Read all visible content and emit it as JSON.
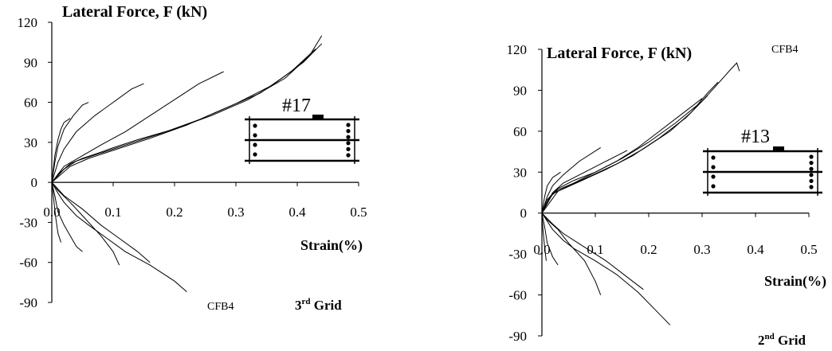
{
  "chart_data": [
    {
      "type": "line",
      "title": "Lateral Force, F (kN)",
      "xlabel": "Strain(%)",
      "ylabel": "Lateral Force, F (kN)",
      "specimen": "CFB4",
      "grid_label": {
        "ordinal": "3",
        "suffix": "rd",
        "word": " Grid"
      },
      "gauge_label": "#17",
      "xlim": [
        0,
        0.5
      ],
      "ylim": [
        -90,
        120
      ],
      "x_ticks": [
        0,
        0.1,
        0.2,
        0.3,
        0.4,
        0.5
      ],
      "x_tick_labels": [
        "0.0",
        "0.1",
        "0.2",
        "0.3",
        "0.4",
        "0.5"
      ],
      "y_ticks": [
        120,
        90,
        60,
        30,
        0,
        -30,
        -60,
        -90
      ],
      "grid": false,
      "legend": "none",
      "series": [
        {
          "x": [
            0.0,
            0.015,
            0.03,
            0.05,
            0.07,
            0.1,
            0.14,
            0.2,
            0.26,
            0.32,
            0.38,
            0.42,
            0.44
          ],
          "y": [
            0,
            8,
            14,
            18,
            21,
            26,
            32,
            40,
            50,
            62,
            78,
            95,
            110
          ]
        },
        {
          "x": [
            0.0,
            0.02,
            0.04,
            0.08,
            0.12,
            0.18,
            0.24,
            0.3,
            0.36,
            0.41,
            0.44
          ],
          "y": [
            0,
            10,
            16,
            22,
            28,
            37,
            47,
            59,
            73,
            90,
            104
          ]
        },
        {
          "x": [
            0.0,
            0.03,
            0.06,
            0.1,
            0.16,
            0.22,
            0.28,
            0.34,
            0.39,
            0.43
          ],
          "y": [
            0,
            12,
            18,
            24,
            33,
            43,
            55,
            67,
            83,
            100
          ]
        },
        {
          "x": [
            0.0,
            0.02,
            0.05,
            0.08,
            0.12,
            0.16,
            0.2,
            0.24,
            0.28
          ],
          "y": [
            0,
            12,
            20,
            28,
            38,
            50,
            62,
            74,
            83
          ]
        },
        {
          "x": [
            0.0,
            0.01,
            0.02,
            0.04,
            0.07,
            0.1,
            0.13,
            0.15
          ],
          "y": [
            0,
            15,
            25,
            38,
            50,
            60,
            70,
            74
          ]
        },
        {
          "x": [
            0.0,
            0.005,
            0.01,
            0.02,
            0.035,
            0.05,
            0.06
          ],
          "y": [
            0,
            15,
            27,
            40,
            50,
            58,
            60
          ]
        },
        {
          "x": [
            0.0,
            0.005,
            0.01,
            0.015,
            0.02,
            0.03
          ],
          "y": [
            0,
            20,
            32,
            40,
            45,
            48
          ]
        },
        {
          "x": [
            0.0,
            0.01,
            0.02,
            0.04,
            0.06,
            0.09,
            0.12,
            0.16,
            0.2,
            0.22
          ],
          "y": [
            0,
            -8,
            -15,
            -25,
            -32,
            -42,
            -52,
            -62,
            -74,
            -82
          ]
        },
        {
          "x": [
            0.0,
            0.02,
            0.05,
            0.08,
            0.11,
            0.14,
            0.16
          ],
          "y": [
            0,
            -10,
            -20,
            -32,
            -42,
            -52,
            -60
          ]
        },
        {
          "x": [
            0.0,
            0.01,
            0.03,
            0.05,
            0.08,
            0.1,
            0.11
          ],
          "y": [
            0,
            -6,
            -15,
            -25,
            -40,
            -52,
            -62
          ]
        },
        {
          "x": [
            0.0,
            0.005,
            0.01,
            0.02,
            0.03,
            0.04,
            0.05
          ],
          "y": [
            0,
            -10,
            -22,
            -32,
            -40,
            -48,
            -52
          ]
        },
        {
          "x": [
            0.0,
            0.003,
            0.006,
            0.01,
            0.015
          ],
          "y": [
            0,
            -12,
            -25,
            -38,
            -45
          ]
        }
      ]
    },
    {
      "type": "line",
      "title": "Lateral Force, F (kN)",
      "xlabel": "Strain(%)",
      "ylabel": "Lateral Force, F (kN)",
      "specimen": "CFB4",
      "grid_label": {
        "ordinal": "2",
        "suffix": "nd",
        "word": " Grid"
      },
      "gauge_label": "#13",
      "xlim": [
        0,
        0.5
      ],
      "ylim": [
        -90,
        120
      ],
      "x_ticks": [
        0,
        0.1,
        0.2,
        0.3,
        0.4,
        0.5
      ],
      "x_tick_labels": [
        "0.0",
        "0.1",
        "0.2",
        "0.3",
        "0.4",
        "0.5"
      ],
      "y_ticks": [
        120,
        90,
        60,
        30,
        0,
        -30,
        -60,
        -90
      ],
      "grid": false,
      "legend": "none",
      "series": [
        {
          "x": [
            0.0,
            0.015,
            0.03,
            0.06,
            0.1,
            0.15,
            0.2,
            0.25,
            0.3,
            0.33,
            0.355,
            0.365,
            0.37
          ],
          "y": [
            0,
            12,
            18,
            24,
            30,
            40,
            52,
            66,
            82,
            95,
            106,
            110,
            104
          ]
        },
        {
          "x": [
            0.0,
            0.02,
            0.05,
            0.09,
            0.14,
            0.19,
            0.24,
            0.28,
            0.31,
            0.33
          ],
          "y": [
            0,
            14,
            20,
            27,
            36,
            47,
            60,
            74,
            88,
            96
          ]
        },
        {
          "x": [
            0.0,
            0.03,
            0.07,
            0.12,
            0.17,
            0.22,
            0.27,
            0.31
          ],
          "y": [
            0,
            16,
            23,
            32,
            42,
            55,
            70,
            86
          ]
        },
        {
          "x": [
            0.0,
            0.01,
            0.03,
            0.06,
            0.1,
            0.14,
            0.18,
            0.22,
            0.26,
            0.3
          ],
          "y": [
            0,
            10,
            17,
            22,
            30,
            38,
            48,
            60,
            72,
            84
          ]
        },
        {
          "x": [
            0.0,
            0.02,
            0.04,
            0.08,
            0.12,
            0.16
          ],
          "y": [
            0,
            15,
            22,
            30,
            38,
            46
          ]
        },
        {
          "x": [
            0.0,
            0.01,
            0.02,
            0.04,
            0.07,
            0.11
          ],
          "y": [
            0,
            12,
            20,
            28,
            38,
            48
          ]
        },
        {
          "x": [
            0.0,
            0.005,
            0.01,
            0.02,
            0.035
          ],
          "y": [
            0,
            12,
            20,
            26,
            30
          ]
        },
        {
          "x": [
            0.0,
            0.01,
            0.02,
            0.04,
            0.06,
            0.1,
            0.14,
            0.18,
            0.21,
            0.24
          ],
          "y": [
            0,
            -6,
            -12,
            -20,
            -26,
            -35,
            -45,
            -58,
            -70,
            -82
          ]
        },
        {
          "x": [
            0.0,
            0.02,
            0.04,
            0.08,
            0.12,
            0.16,
            0.19
          ],
          "y": [
            0,
            -8,
            -15,
            -25,
            -35,
            -47,
            -56
          ]
        },
        {
          "x": [
            0.0,
            0.01,
            0.03,
            0.05,
            0.08,
            0.1,
            0.11
          ],
          "y": [
            0,
            -5,
            -12,
            -22,
            -35,
            -50,
            -60
          ]
        },
        {
          "x": [
            0.0,
            0.005,
            0.01,
            0.02,
            0.03
          ],
          "y": [
            0,
            -10,
            -22,
            -32,
            -38
          ]
        },
        {
          "x": [
            0.0,
            0.002,
            0.005,
            0.008
          ],
          "y": [
            0,
            -12,
            -25,
            -35
          ]
        }
      ]
    }
  ]
}
